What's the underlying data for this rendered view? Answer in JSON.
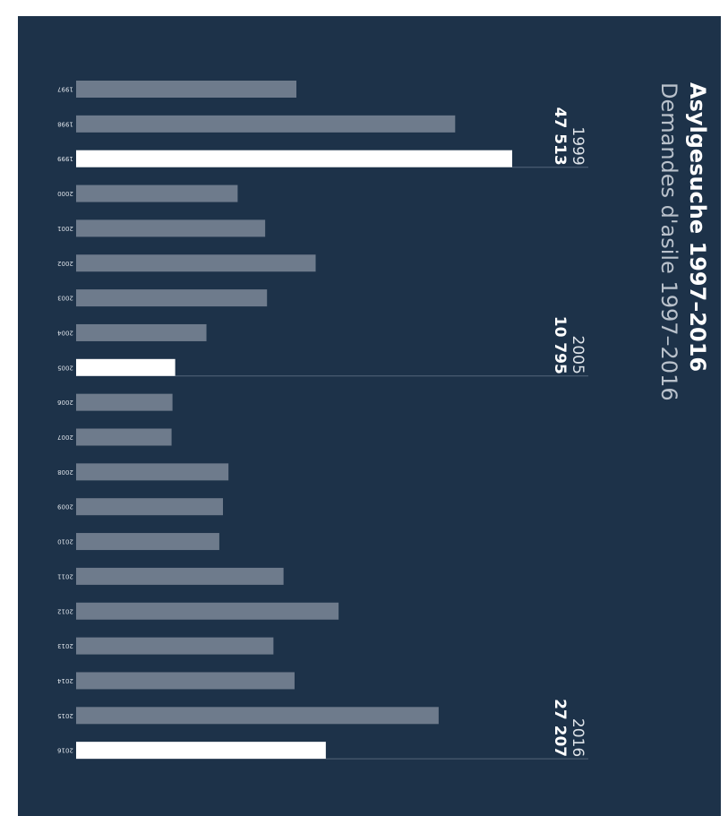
{
  "colors": {
    "background": "#1d3249",
    "bar": "#6e7b8c",
    "highlight": "#ffffff",
    "title": "#ffffff",
    "subtitle": "#b9c1cb",
    "label": "#dde2e8",
    "leader": "#55667a"
  },
  "chart_data": {
    "type": "bar",
    "orientation": "horizontal",
    "title": "Asylgesuche 1997–2016",
    "subtitle": "Demandes d'asile 1997–2016",
    "categories": [
      "1997",
      "1998",
      "1999",
      "2000",
      "2001",
      "2002",
      "2003",
      "2004",
      "2005",
      "2006",
      "2007",
      "2008",
      "2009",
      "2010",
      "2011",
      "2012",
      "2013",
      "2014",
      "2015",
      "2016"
    ],
    "values": [
      24000,
      41300,
      47513,
      17600,
      20600,
      26100,
      20800,
      14200,
      10795,
      10500,
      10400,
      16600,
      16000,
      15600,
      22600,
      28600,
      21500,
      23800,
      39500,
      27207
    ],
    "highlighted": [
      "1999",
      "2005",
      "2016"
    ],
    "annotations": [
      {
        "year": "1999",
        "value_label": "47 513"
      },
      {
        "year": "2005",
        "value_label": "10 795"
      },
      {
        "year": "2016",
        "value_label": "27 207"
      }
    ],
    "xlim": [
      0,
      47513
    ],
    "grid": false,
    "legend": "none"
  }
}
